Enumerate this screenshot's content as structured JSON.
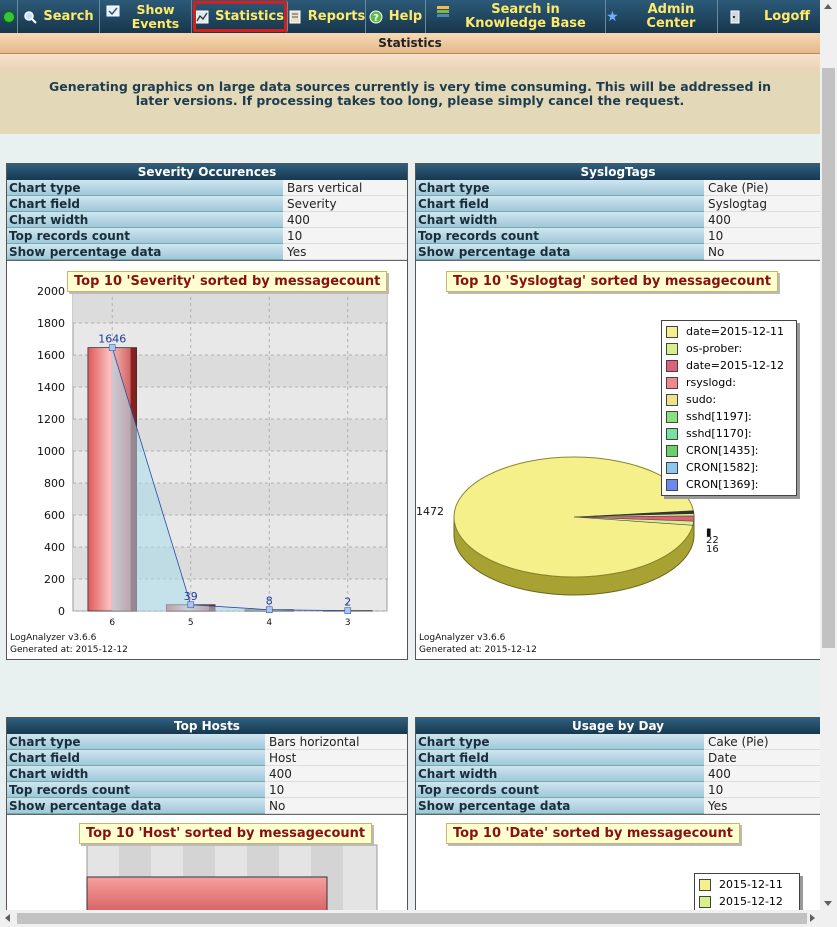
{
  "nav": {
    "items": [
      {
        "label": "",
        "icon": "green-dot-icon"
      },
      {
        "label": "Search",
        "icon": "magnifier-icon"
      },
      {
        "label": "Show Events",
        "icon": "events-icon"
      },
      {
        "label": "Statistics",
        "icon": "statistics-icon"
      },
      {
        "label": "Reports",
        "icon": "reports-icon"
      },
      {
        "label": "Help",
        "icon": "help-icon"
      },
      {
        "label": "Search in Knowledge Base",
        "icon": "knowledge-base-icon"
      },
      {
        "label": "Admin Center",
        "icon": "star-icon"
      },
      {
        "label": "Logoff",
        "icon": "logoff-icon"
      }
    ],
    "selected_color": "#d0211f",
    "text_color": "#ffe96b"
  },
  "page_title": "Statistics",
  "notice": "Generating graphics on large data sources currently is very time consuming. This will be addressed in later versions. If processing takes too long, please simply cancel the request.",
  "labels": {
    "chart_type": "Chart type",
    "chart_field": "Chart field",
    "chart_width": "Chart width",
    "top_records": "Top records count",
    "show_percentage": "Show percentage data"
  },
  "panels": [
    {
      "title": "Severity Occurences",
      "chart_type": "Bars vertical",
      "chart_field": "Severity",
      "chart_width": "400",
      "top_records": "10",
      "show_percentage": "Yes",
      "chart_title": "Top 10 'Severity' sorted by messagecount",
      "footer_version": "LogAnalyzer v3.6.6",
      "footer_generated": "Generated at: 2015-12-12"
    },
    {
      "title": "SyslogTags",
      "chart_type": "Cake (Pie)",
      "chart_field": "Syslogtag",
      "chart_width": "400",
      "top_records": "10",
      "show_percentage": "No",
      "chart_title": "Top 10 'Syslogtag' sorted by messagecount",
      "footer_version": "LogAnalyzer v3.6.6",
      "footer_generated": "Generated at: 2015-12-12"
    },
    {
      "title": "Top Hosts",
      "chart_type": "Bars horizontal",
      "chart_field": "Host",
      "chart_width": "400",
      "top_records": "10",
      "show_percentage": "No",
      "chart_title": "Top 10 'Host' sorted by messagecount"
    },
    {
      "title": "Usage by Day",
      "chart_type": "Cake (Pie)",
      "chart_field": "Date",
      "chart_width": "400",
      "top_records": "10",
      "show_percentage": "Yes",
      "chart_title": "Top 10 'Date' sorted by messagecount"
    }
  ],
  "chart_data": [
    {
      "type": "bar",
      "title": "Top 10 'Severity' sorted by messagecount",
      "categories": [
        "6",
        "5",
        "4",
        "3"
      ],
      "values": [
        1646,
        39,
        8,
        2
      ],
      "ylim": [
        0,
        2000
      ],
      "yticks": [
        0,
        200,
        400,
        600,
        800,
        1000,
        1200,
        1400,
        1600,
        1800,
        2000
      ],
      "grid": true
    },
    {
      "type": "pie",
      "title": "Top 10 'Syslogtag' sorted by messagecount",
      "labels": [
        "date=2015-12-11",
        "os-prober:",
        "date=2015-12-12",
        "rsyslogd:",
        "sudo:",
        "sshd[1197]:",
        "sshd[1170]:",
        "CRON[1435]:",
        "CRON[1582]:",
        "CRON[1369]:"
      ],
      "colors": [
        "#f5f08a",
        "#d8f08a",
        "#e0607a",
        "#f08a8a",
        "#f0e08a",
        "#8ae07a",
        "#7ae0a0",
        "#6ad06a",
        "#8ac8f0",
        "#6a8af0"
      ],
      "visible_value_labels": [
        "1472",
        "22",
        "16"
      ],
      "legend": "top-right"
    },
    {
      "type": "bar",
      "title": "Top 10 'Host' sorted by messagecount",
      "orientation": "horizontal"
    },
    {
      "type": "pie",
      "title": "Top 10 'Date' sorted by messagecount",
      "labels": [
        "2015-12-11",
        "2015-12-12"
      ],
      "colors": [
        "#f5f08a",
        "#d8f08a"
      ],
      "legend": "top-right"
    }
  ]
}
